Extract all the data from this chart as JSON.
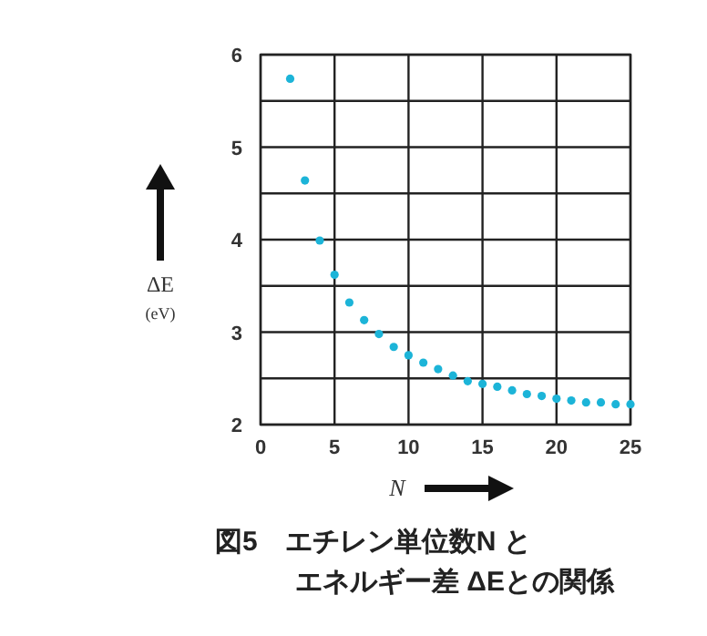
{
  "chart_data": {
    "type": "scatter",
    "title": "図5　エチレン単位数N と",
    "subtitle": "エネルギー差 ΔEとの関係",
    "xlabel": "N",
    "ylabel": "ΔE\n(eV)",
    "x": [
      2,
      3,
      4,
      5,
      6,
      7,
      8,
      9,
      10,
      11,
      12,
      13,
      14,
      15,
      16,
      17,
      18,
      19,
      20,
      21,
      22,
      23,
      24,
      25
    ],
    "series": [
      {
        "color": "#1cb4d8",
        "values": [
          5.74,
          4.64,
          3.99,
          3.62,
          3.32,
          3.13,
          2.98,
          2.84,
          2.75,
          2.67,
          2.6,
          2.53,
          2.47,
          2.44,
          2.41,
          2.37,
          2.33,
          2.31,
          2.28,
          2.26,
          2.24,
          2.24,
          2.22,
          2.22
        ]
      }
    ],
    "xlim": [
      0,
      25
    ],
    "ylim": [
      2,
      6
    ],
    "xticks": [
      0,
      5,
      10,
      15,
      20,
      25
    ],
    "yticks": [
      2,
      {
        "value": 2.5,
        "label": null
      },
      3,
      {
        "value": 3.5,
        "label": null
      },
      4,
      {
        "value": 4.5,
        "label": null
      },
      5,
      {
        "value": 5.5,
        "label": null
      },
      6
    ],
    "grid": true,
    "marker": "circle"
  }
}
